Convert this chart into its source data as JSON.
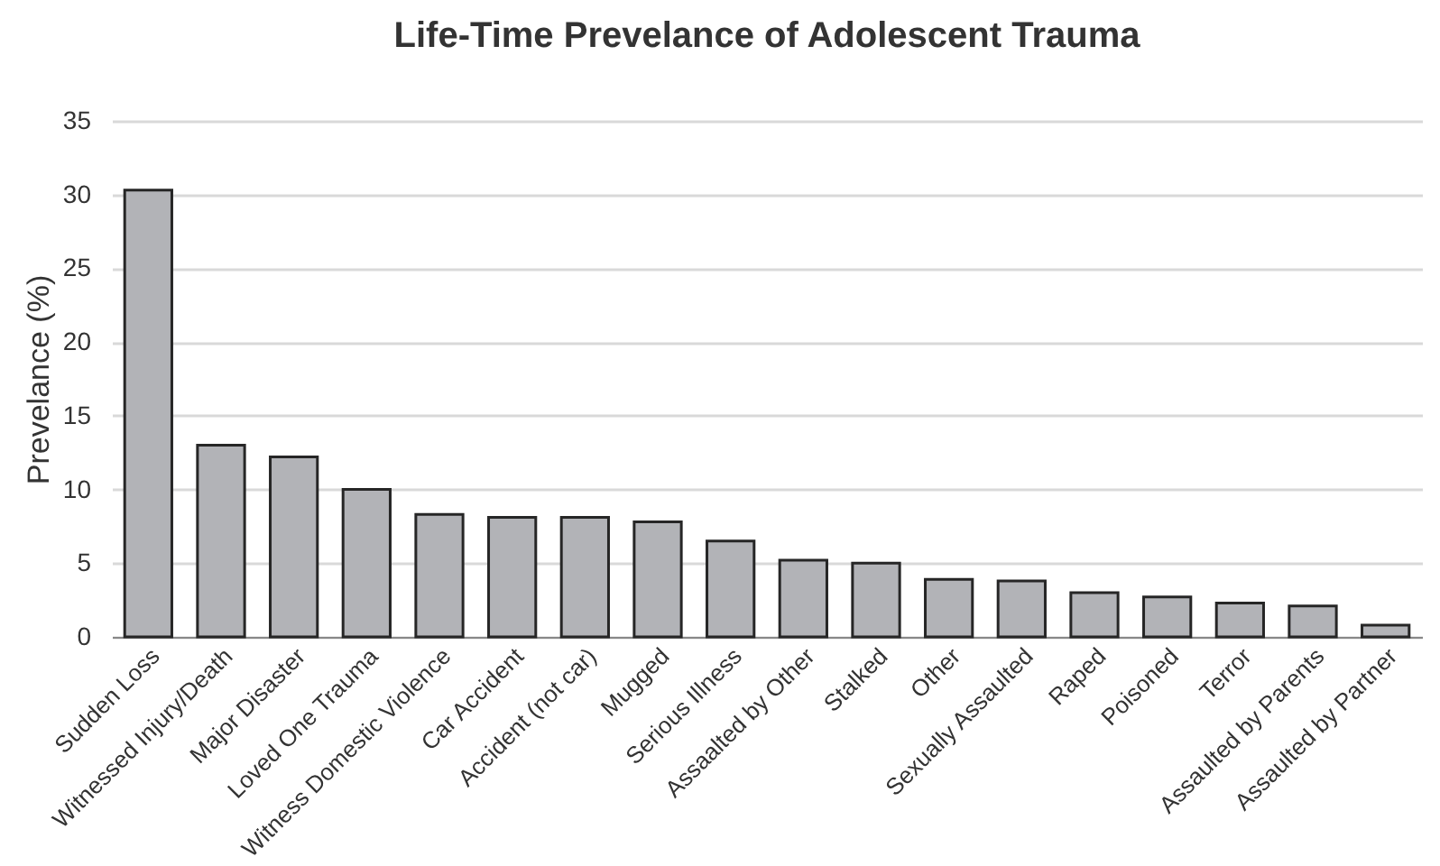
{
  "chart_data": {
    "type": "bar",
    "title": "Life-Time Prevelance of Adolescent Trauma",
    "ylabel": "Prevelance (%)",
    "categories": [
      "Sudden Loss",
      "Witnessed Injury/Death",
      "Major Disaster",
      "Loved One Trauma",
      "Witness Domestic Violence",
      "Car Accident",
      "Accident (not car)",
      "Mugged",
      "Serious Illness",
      "Assaalted by Other",
      "Stalked",
      "Other",
      "Sexually Assaulted",
      "Raped",
      "Poisoned",
      "Terror",
      "Assaulted by Parents",
      "Assaulted by Partner"
    ],
    "values": [
      30.3,
      13.0,
      12.2,
      10.0,
      8.3,
      8.1,
      8.1,
      7.8,
      6.5,
      5.2,
      5.0,
      3.9,
      3.8,
      3.0,
      2.7,
      2.3,
      2.1,
      0.8
    ],
    "color": "#b2b3b7",
    "ylim": [
      0,
      35
    ],
    "yticks": [
      0,
      5,
      10,
      15,
      20,
      25,
      30,
      35
    ],
    "grid": "y"
  }
}
